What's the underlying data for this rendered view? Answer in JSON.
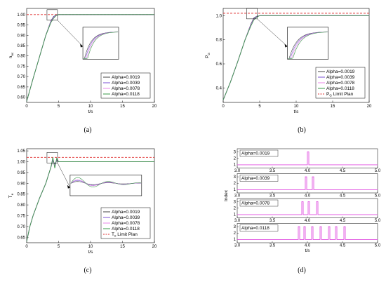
{
  "colors": {
    "a0019": "#444444",
    "a0039": "#7b52d6",
    "a0078": "#e887e8",
    "a0118": "#3a9a4a",
    "limit": "#e03030",
    "index": "#e050e0"
  },
  "chart_data": [
    {
      "id": "a",
      "type": "line",
      "caption": "(a)",
      "xlabel": "t/s",
      "ylabel": "n",
      "ylabel_sub": "nc",
      "xlim": [
        0,
        20
      ],
      "ylim": [
        0.575,
        1.03
      ],
      "xticks": [
        "0",
        "5",
        "10",
        "15",
        "20"
      ],
      "yticks": [
        "0.60",
        "0.65",
        "0.70",
        "0.75",
        "0.80",
        "0.85",
        "0.90",
        "0.95",
        "1.00"
      ],
      "limit_y": 1.0,
      "legend": [
        "Alpha=0.0019",
        "Alpha=0.0039",
        "Alpha=0.0078",
        "Alpha=0.0118"
      ],
      "series": [
        {
          "name": "Alpha=0.0019",
          "x": [
            0,
            1,
            2,
            3,
            3.8,
            4.2,
            4.6,
            5,
            20
          ],
          "y": [
            0.58,
            0.69,
            0.795,
            0.9,
            0.97,
            0.99,
            0.998,
            1.0,
            1.0
          ]
        },
        {
          "name": "Alpha=0.0039",
          "x": [
            0,
            1,
            2,
            3,
            3.8,
            4.2,
            4.6,
            5,
            20
          ],
          "y": [
            0.58,
            0.69,
            0.795,
            0.9,
            0.968,
            0.988,
            0.997,
            1.0,
            1.0
          ]
        },
        {
          "name": "Alpha=0.0078",
          "x": [
            0,
            1,
            2,
            3,
            3.8,
            4.2,
            4.6,
            5,
            20
          ],
          "y": [
            0.58,
            0.69,
            0.795,
            0.9,
            0.965,
            0.985,
            0.996,
            1.0,
            1.0
          ]
        },
        {
          "name": "Alpha=0.0118",
          "x": [
            0,
            1,
            2,
            3,
            3.8,
            4.2,
            4.6,
            5,
            20
          ],
          "y": [
            0.58,
            0.69,
            0.795,
            0.9,
            0.962,
            0.982,
            0.995,
            1.0,
            1.0
          ]
        }
      ]
    },
    {
      "id": "b",
      "type": "line",
      "caption": "(b)",
      "xlabel": "t/s",
      "ylabel": "P",
      "ylabel_sub": "G",
      "xlim": [
        0,
        20
      ],
      "ylim": [
        0.28,
        1.06
      ],
      "xticks": [
        "0",
        "5",
        "10",
        "15",
        "20"
      ],
      "yticks": [
        "0.4",
        "0.6",
        "0.8",
        "1.0"
      ],
      "limit_y": 1.02,
      "legend": [
        "Alpha=0.0019",
        "Alpha=0.0039",
        "Alpha=0.0078",
        "Alpha=0.0118",
        "P",
        "Limit Plan"
      ],
      "legend_limit_sub": "G",
      "series": [
        {
          "name": "Alpha=0.0019",
          "x": [
            0,
            1,
            2,
            3,
            3.8,
            4.2,
            4.6,
            5,
            20
          ],
          "y": [
            0.3,
            0.45,
            0.62,
            0.8,
            0.93,
            0.98,
            0.995,
            1.0,
            1.0
          ]
        },
        {
          "name": "Alpha=0.0039",
          "x": [
            0,
            1,
            2,
            3,
            3.8,
            4.2,
            4.6,
            5,
            20
          ],
          "y": [
            0.3,
            0.45,
            0.62,
            0.8,
            0.925,
            0.975,
            0.993,
            1.0,
            1.0
          ]
        },
        {
          "name": "Alpha=0.0078",
          "x": [
            0,
            1,
            2,
            3,
            3.8,
            4.2,
            4.6,
            5,
            20
          ],
          "y": [
            0.3,
            0.45,
            0.62,
            0.8,
            0.92,
            0.97,
            0.99,
            1.0,
            1.0
          ]
        },
        {
          "name": "Alpha=0.0118",
          "x": [
            0,
            1,
            2,
            3,
            3.8,
            4.2,
            4.6,
            5,
            20
          ],
          "y": [
            0.3,
            0.45,
            0.62,
            0.8,
            0.915,
            0.965,
            0.988,
            1.0,
            1.0
          ]
        }
      ]
    },
    {
      "id": "c",
      "type": "line",
      "caption": "(c)",
      "xlabel": "t/s",
      "ylabel": "T",
      "ylabel_sub": "e",
      "xlim": [
        0,
        20
      ],
      "ylim": [
        0.625,
        1.06
      ],
      "xticks": [
        "0",
        "5",
        "10",
        "15",
        "20"
      ],
      "yticks": [
        "0.65",
        "0.70",
        "0.75",
        "0.80",
        "0.85",
        "0.90",
        "0.95",
        "1.00",
        "1.05"
      ],
      "limit_y": 1.02,
      "legend": [
        "Alpha=0.0019",
        "Alpha=0.0039",
        "Alpha=0.0078",
        "Alpha=0.0118",
        "T",
        "Limit Plan"
      ],
      "legend_limit_sub": "e",
      "series": [
        {
          "name": "Alpha=0.0019",
          "x": [
            0,
            0.5,
            1,
            2,
            3,
            3.8,
            4.1,
            4.4,
            4.7,
            5,
            20
          ],
          "y": [
            0.63,
            0.7,
            0.75,
            0.83,
            0.9,
            0.975,
            1.005,
            0.99,
            1.003,
            1.0,
            1.0
          ]
        },
        {
          "name": "Alpha=0.0039",
          "x": [
            0,
            0.5,
            1,
            2,
            3,
            3.8,
            4.1,
            4.4,
            4.7,
            5,
            20
          ],
          "y": [
            0.63,
            0.7,
            0.75,
            0.83,
            0.9,
            0.975,
            1.01,
            0.985,
            1.006,
            1.0,
            1.0
          ]
        },
        {
          "name": "Alpha=0.0078",
          "x": [
            0,
            0.5,
            1,
            2,
            3,
            3.8,
            4.1,
            4.4,
            4.7,
            5,
            20
          ],
          "y": [
            0.63,
            0.7,
            0.75,
            0.83,
            0.9,
            0.975,
            1.015,
            0.98,
            1.01,
            1.0,
            1.0
          ]
        },
        {
          "name": "Alpha=0.0118",
          "x": [
            0,
            0.5,
            1,
            2,
            3,
            3.8,
            4.1,
            4.4,
            4.7,
            5,
            20
          ],
          "y": [
            0.63,
            0.7,
            0.75,
            0.83,
            0.9,
            0.975,
            1.02,
            0.97,
            1.015,
            1.0,
            1.0
          ]
        }
      ]
    },
    {
      "id": "d",
      "type": "line",
      "caption": "(d)",
      "xlabel": "t/s",
      "ylabel": "Index",
      "xlim": [
        3.0,
        5.0
      ],
      "ylim": [
        0.5,
        3.5
      ],
      "xticks": [
        "3.0",
        "3.5",
        "4.0",
        "4.5",
        "5.0"
      ],
      "yticks": [
        "1",
        "2",
        "3"
      ],
      "subplots": [
        {
          "label": "Alpha=0.0019",
          "pulses": [
            4.0
          ]
        },
        {
          "label": "Alpha=0.0039",
          "pulses": [
            3.97,
            4.07
          ]
        },
        {
          "label": "Alpha=0.0078",
          "pulses": [
            3.92,
            4.01,
            4.13
          ]
        },
        {
          "label": "Alpha=0.0118",
          "pulses": [
            3.87,
            3.95,
            4.06,
            4.18,
            4.3,
            4.4,
            4.52
          ]
        }
      ]
    }
  ]
}
